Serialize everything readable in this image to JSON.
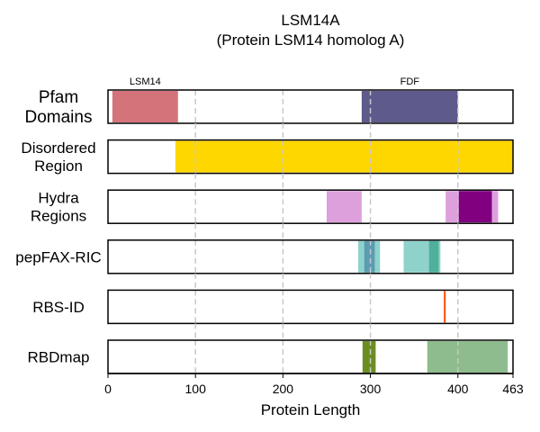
{
  "chart_data": {
    "type": "bar",
    "title": "LSM14A",
    "subtitle": "(Protein LSM14 homolog A)",
    "xlabel": "Protein Length",
    "xlim": [
      0,
      463
    ],
    "x_ticks": [
      {
        "value": 0,
        "label": "0"
      },
      {
        "value": 100,
        "label": "100"
      },
      {
        "value": 200,
        "label": "200"
      },
      {
        "value": 300,
        "label": "300"
      },
      {
        "value": 400,
        "label": "400"
      },
      {
        "value": 463,
        "label": "463"
      }
    ],
    "vertical_gridlines": [
      100,
      200,
      300,
      400
    ],
    "grid": "dashed vertical",
    "tracks": [
      {
        "label_lines": [
          "Pfam",
          "Domains"
        ],
        "segments": [
          {
            "start": 5,
            "end": 80,
            "color": "#D4737A",
            "label": "LSM14"
          },
          {
            "start": 290,
            "end": 400,
            "color": "#5E5A8C",
            "label": "FDF"
          }
        ]
      },
      {
        "label_lines": [
          "Disordered",
          "Region"
        ],
        "segments": [
          {
            "start": 77,
            "end": 463,
            "color": "#FFD700"
          }
        ]
      },
      {
        "label_lines": [
          "Hydra",
          "Regions"
        ],
        "segments": [
          {
            "start": 250,
            "end": 290,
            "color": "#DDA0DD"
          },
          {
            "start": 386,
            "end": 401,
            "color": "#DDA0DD"
          },
          {
            "start": 401,
            "end": 439,
            "color": "#800080"
          },
          {
            "start": 439,
            "end": 446,
            "color": "#DDA0DD"
          }
        ]
      },
      {
        "label_lines": [
          "pepFAX-RIC"
        ],
        "segments": [
          {
            "start": 286,
            "end": 311,
            "color": "#5FBFB7",
            "opacity": 0.7
          },
          {
            "start": 293,
            "end": 305,
            "color": "#4E8FAA",
            "opacity": 0.8
          },
          {
            "start": 338,
            "end": 380,
            "color": "#5FBFB7",
            "opacity": 0.7
          },
          {
            "start": 367,
            "end": 378,
            "color": "#3FA890",
            "opacity": 0.8
          }
        ]
      },
      {
        "label_lines": [
          "RBS-ID"
        ],
        "segments": [
          {
            "start": 384,
            "end": 386,
            "color": "#FF4500"
          }
        ]
      },
      {
        "label_lines": [
          "RBDmap"
        ],
        "segments": [
          {
            "start": 291,
            "end": 306,
            "color": "#6B8E23"
          },
          {
            "start": 365,
            "end": 457,
            "color": "#8FBC8F"
          }
        ]
      }
    ]
  }
}
